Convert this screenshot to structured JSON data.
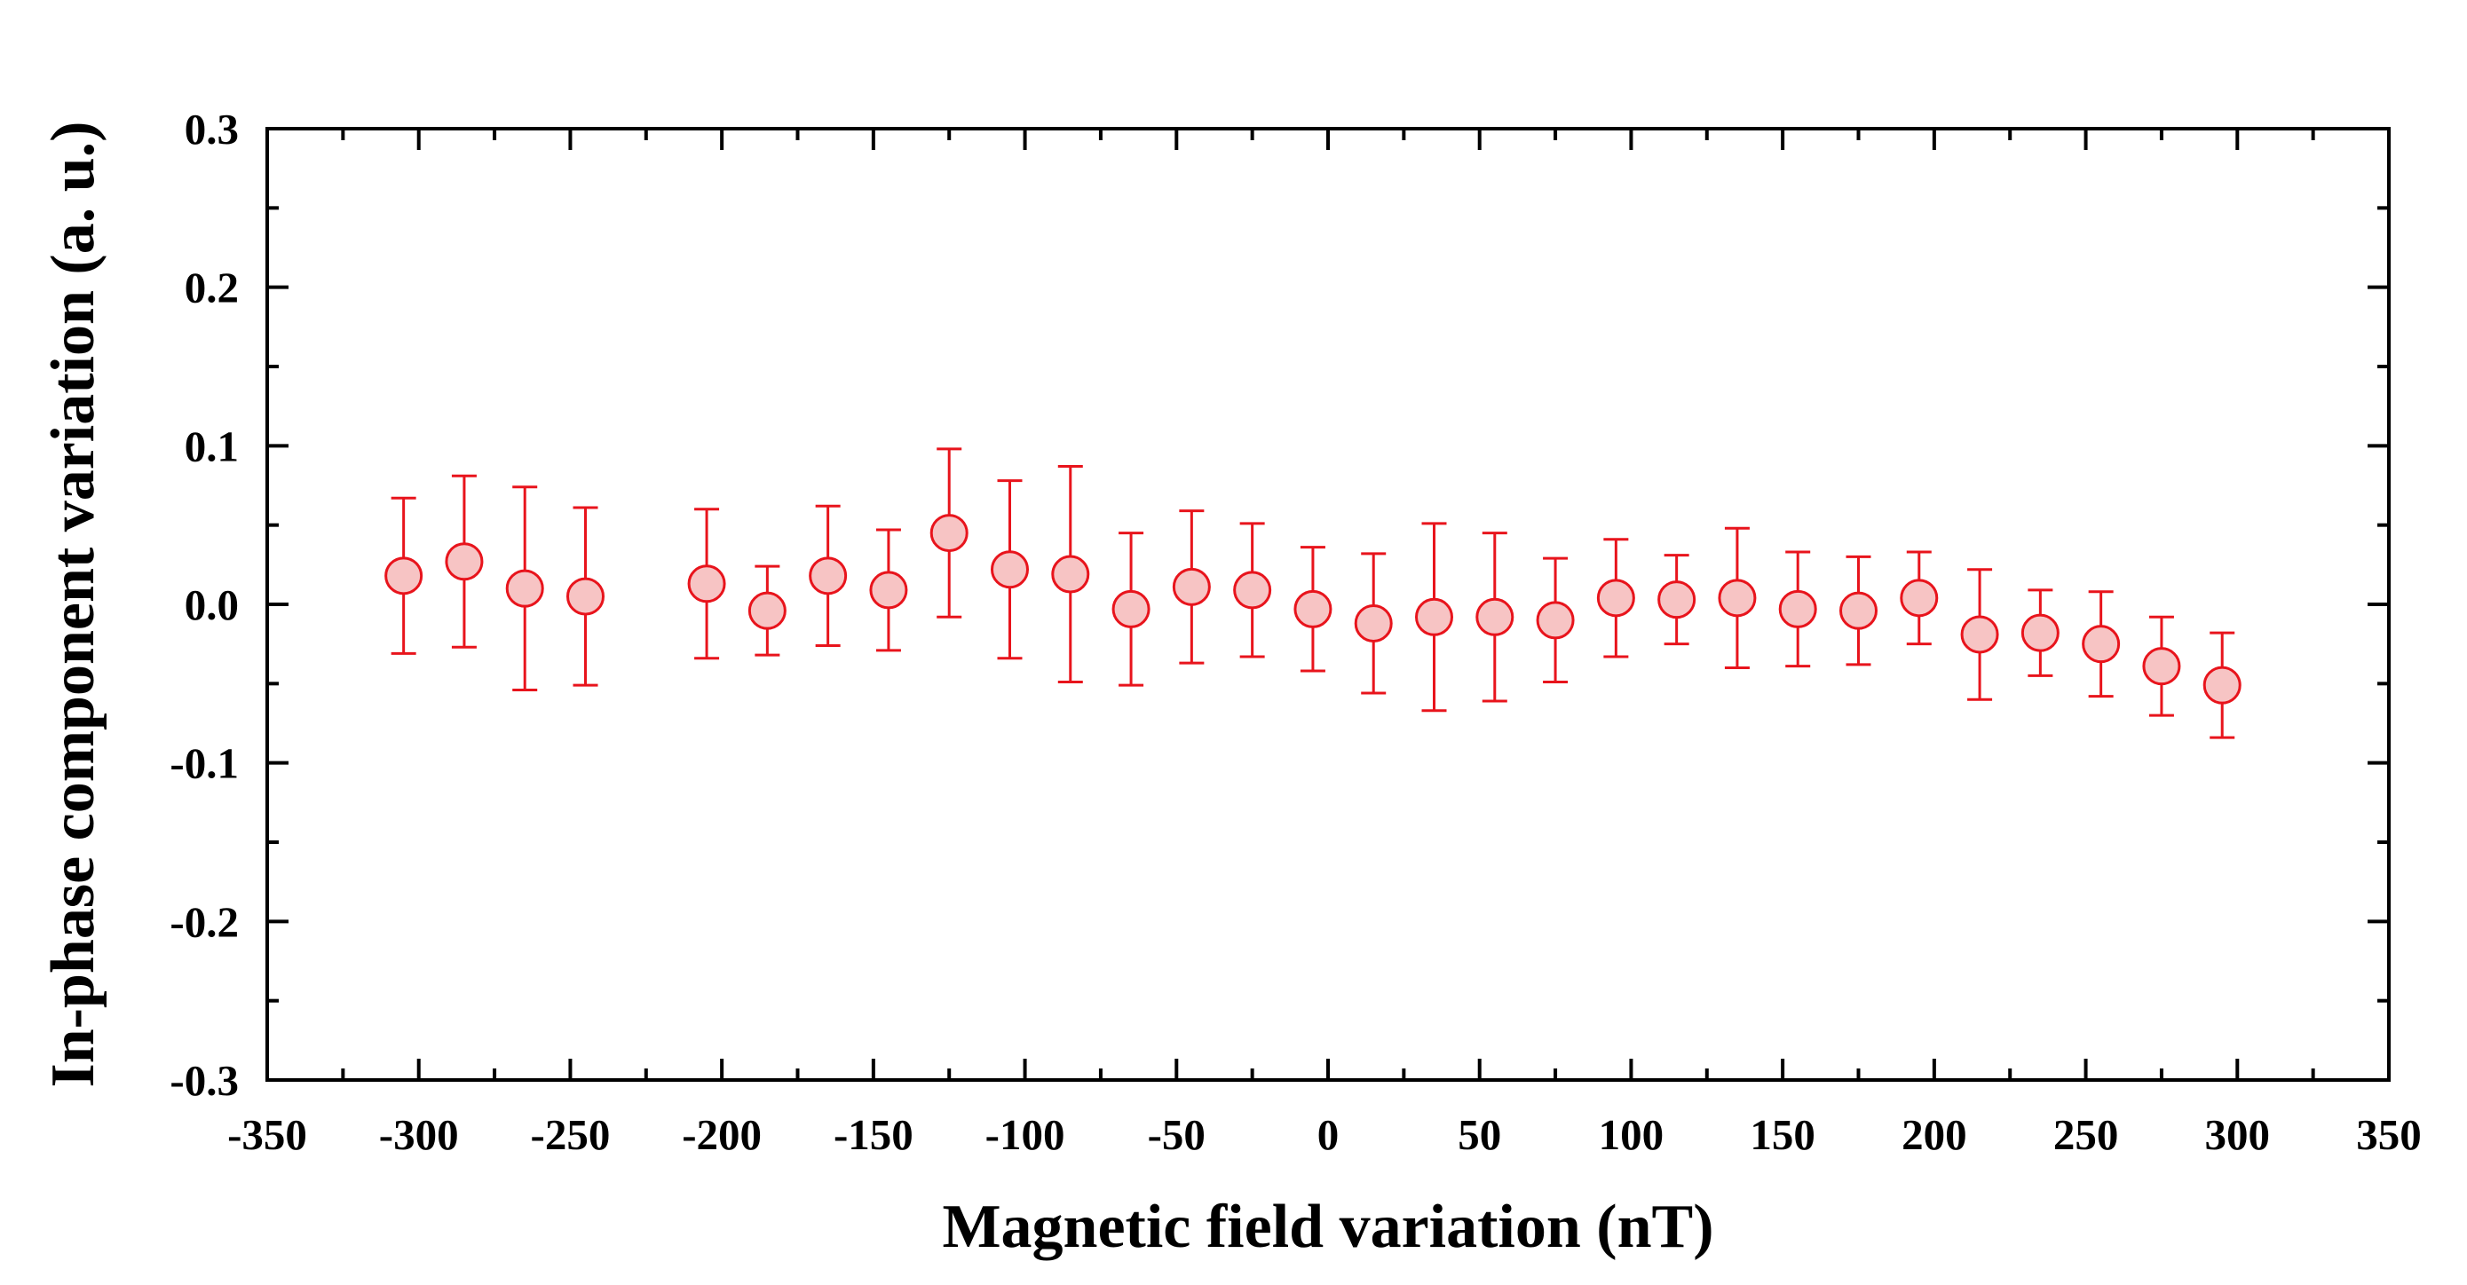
{
  "chart_data": {
    "type": "scatter",
    "xlabel": "Magnetic field variation (nT)",
    "ylabel": "In-phase component variation (a. u.)",
    "xlim": [
      -350,
      350
    ],
    "ylim": [
      -0.3,
      0.3
    ],
    "x_ticks": [
      "-350",
      "-300",
      "-250",
      "-200",
      "-150",
      "-100",
      "-50",
      "0",
      "50",
      "100",
      "150",
      "200",
      "250",
      "300",
      "350"
    ],
    "y_ticks": [
      "0.3",
      "0.2",
      "0.1",
      "0.0",
      "-0.1",
      "-0.2",
      "-0.3"
    ],
    "grid": false,
    "marker_fill": "#f7c4c4",
    "marker_edge": "#e8141c",
    "errorbar_color": "#e8141c",
    "series": [
      {
        "points": [
          {
            "x": -305,
            "y": 0.018,
            "err": 0.049
          },
          {
            "x": -285,
            "y": 0.027,
            "err": 0.054
          },
          {
            "x": -265,
            "y": 0.01,
            "err": 0.064
          },
          {
            "x": -245,
            "y": 0.005,
            "err": 0.056
          },
          {
            "x": -205,
            "y": 0.013,
            "err": 0.047
          },
          {
            "x": -185,
            "y": -0.004,
            "err": 0.028
          },
          {
            "x": -165,
            "y": 0.018,
            "err": 0.044
          },
          {
            "x": -145,
            "y": 0.009,
            "err": 0.038
          },
          {
            "x": -125,
            "y": 0.045,
            "err": 0.053
          },
          {
            "x": -105,
            "y": 0.022,
            "err": 0.056
          },
          {
            "x": -85,
            "y": 0.019,
            "err": 0.068
          },
          {
            "x": -65,
            "y": -0.003,
            "err": 0.048
          },
          {
            "x": -45,
            "y": 0.011,
            "err": 0.048
          },
          {
            "x": -25,
            "y": 0.009,
            "err": 0.042
          },
          {
            "x": -5,
            "y": -0.003,
            "err": 0.039
          },
          {
            "x": 15,
            "y": -0.012,
            "err": 0.044
          },
          {
            "x": 35,
            "y": -0.008,
            "err": 0.059
          },
          {
            "x": 55,
            "y": -0.008,
            "err": 0.053
          },
          {
            "x": 75,
            "y": -0.01,
            "err": 0.039
          },
          {
            "x": 95,
            "y": 0.004,
            "err": 0.037
          },
          {
            "x": 115,
            "y": 0.003,
            "err": 0.028
          },
          {
            "x": 135,
            "y": 0.004,
            "err": 0.044
          },
          {
            "x": 155,
            "y": -0.003,
            "err": 0.036
          },
          {
            "x": 175,
            "y": -0.004,
            "err": 0.034
          },
          {
            "x": 195,
            "y": 0.004,
            "err": 0.029
          },
          {
            "x": 215,
            "y": -0.019,
            "err": 0.041
          },
          {
            "x": 235,
            "y": -0.018,
            "err": 0.027
          },
          {
            "x": 255,
            "y": -0.025,
            "err": 0.033
          },
          {
            "x": 275,
            "y": -0.039,
            "err": 0.031
          },
          {
            "x": 295,
            "y": -0.051,
            "err": 0.033
          }
        ]
      }
    ]
  }
}
